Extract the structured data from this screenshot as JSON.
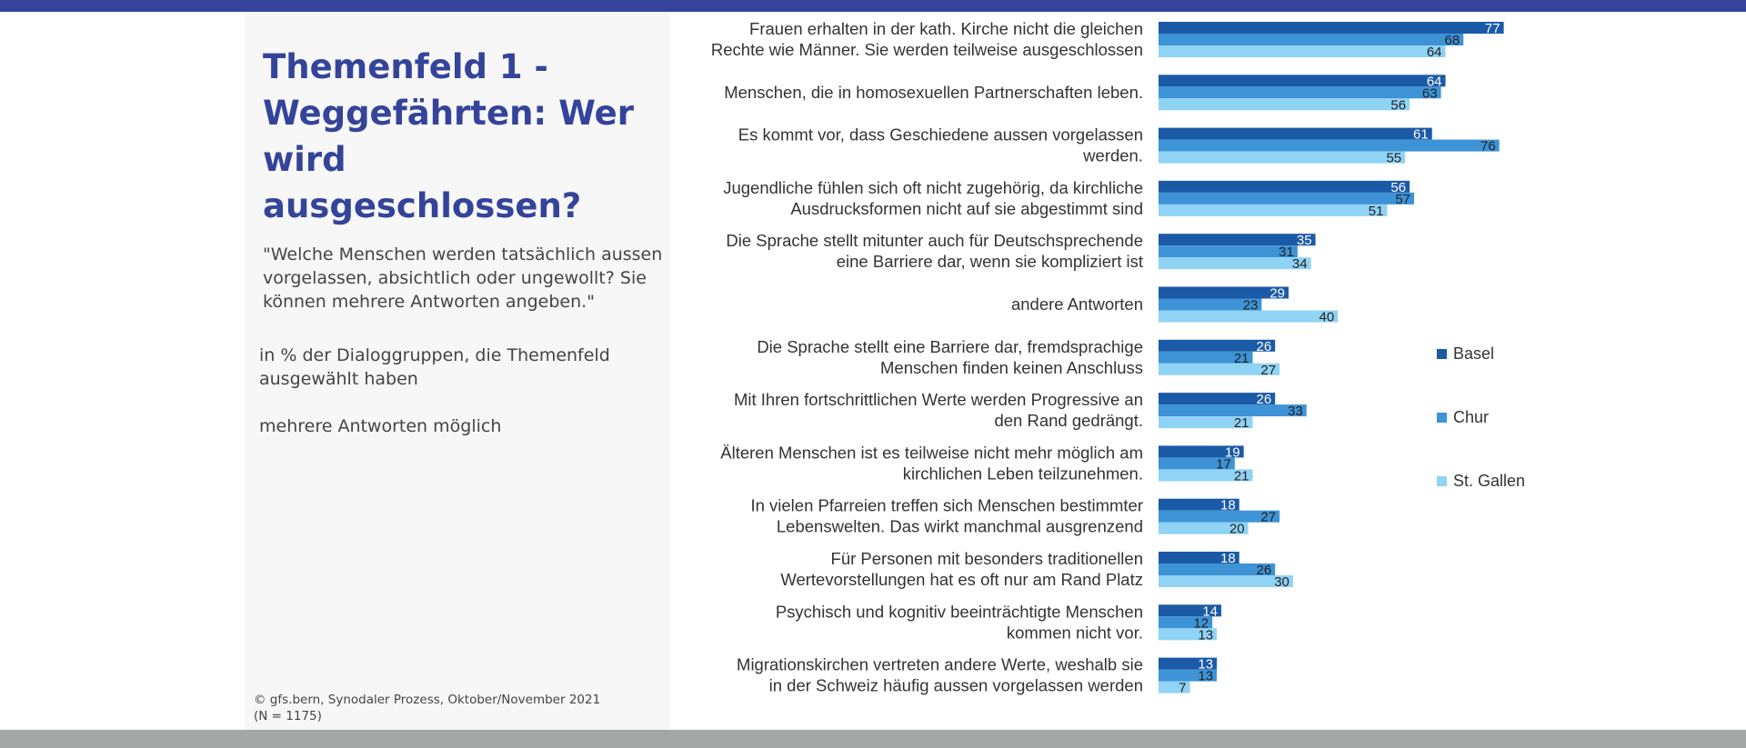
{
  "title": "Themenfeld 1 - Weggefährten: Wer wird ausgeschlossen?",
  "question": "\"Welche Menschen werden tatsächlich aussen vorgelassen, absichtlich oder ungewollt? Sie können mehrere Antworten angeben.\"",
  "base": "in % der Dialoggruppen, die Themenfeld ausgewählt haben",
  "note": "mehrere Antworten möglich",
  "source": "©  gfs.bern, Synodaler Prozess, Oktober/November 2021 (N = 1175)",
  "colors": {
    "header": "#34449a",
    "footer": "#a3a7a6",
    "basel": "#1b5aa6",
    "chur": "#3d93d6",
    "st_gallen": "#8fd3f5"
  },
  "chart_data": {
    "type": "bar",
    "orientation": "horizontal",
    "unit": "%",
    "categories": [
      [
        "Frauen erhalten in der kath. Kirche nicht die gleichen",
        "Rechte wie Männer. Sie werden teilweise ausgeschlossen"
      ],
      [
        "Menschen, die in homosexuellen Partnerschaften leben."
      ],
      [
        "Es kommt vor, dass Geschiedene aussen vorgelassen",
        "werden."
      ],
      [
        "Jugendliche fühlen sich oft nicht zugehörig, da kirchliche",
        "Ausdrucksformen nicht auf sie abgestimmt sind"
      ],
      [
        "Die Sprache stellt mitunter auch für Deutschsprechende",
        "eine Barriere dar, wenn sie kompliziert ist"
      ],
      [
        "andere Antworten"
      ],
      [
        "Die Sprache stellt eine Barriere dar, fremdsprachige",
        "Menschen finden keinen Anschluss"
      ],
      [
        "Mit Ihren fortschrittlichen Werte werden Progressive an",
        "den Rand gedrängt."
      ],
      [
        "Älteren Menschen ist es teilweise nicht mehr möglich am",
        "kirchlichen Leben teilzunehmen."
      ],
      [
        "In vielen Pfarreien treffen sich Menschen bestimmter",
        "Lebenswelten. Das wirkt manchmal ausgrenzend"
      ],
      [
        "Für Personen mit besonders traditionellen",
        "Wertevorstellungen hat es oft nur am Rand Platz"
      ],
      [
        "Psychisch und kognitiv beeinträchtigte Menschen",
        "kommen nicht vor."
      ],
      [
        "Migrationskirchen vertreten andere Werte, weshalb sie",
        "in der Schweiz häufig aussen vorgelassen  werden"
      ]
    ],
    "series": [
      {
        "name": "Basel",
        "values": [
          77,
          64,
          61,
          56,
          35,
          29,
          26,
          26,
          19,
          18,
          18,
          14,
          13
        ]
      },
      {
        "name": "Chur",
        "values": [
          68,
          63,
          76,
          57,
          31,
          23,
          21,
          33,
          17,
          27,
          26,
          12,
          13
        ]
      },
      {
        "name": "St. Gallen",
        "values": [
          64,
          56,
          55,
          51,
          34,
          40,
          27,
          21,
          21,
          20,
          30,
          13,
          7
        ]
      }
    ],
    "legend_position": "right",
    "grid": false
  }
}
